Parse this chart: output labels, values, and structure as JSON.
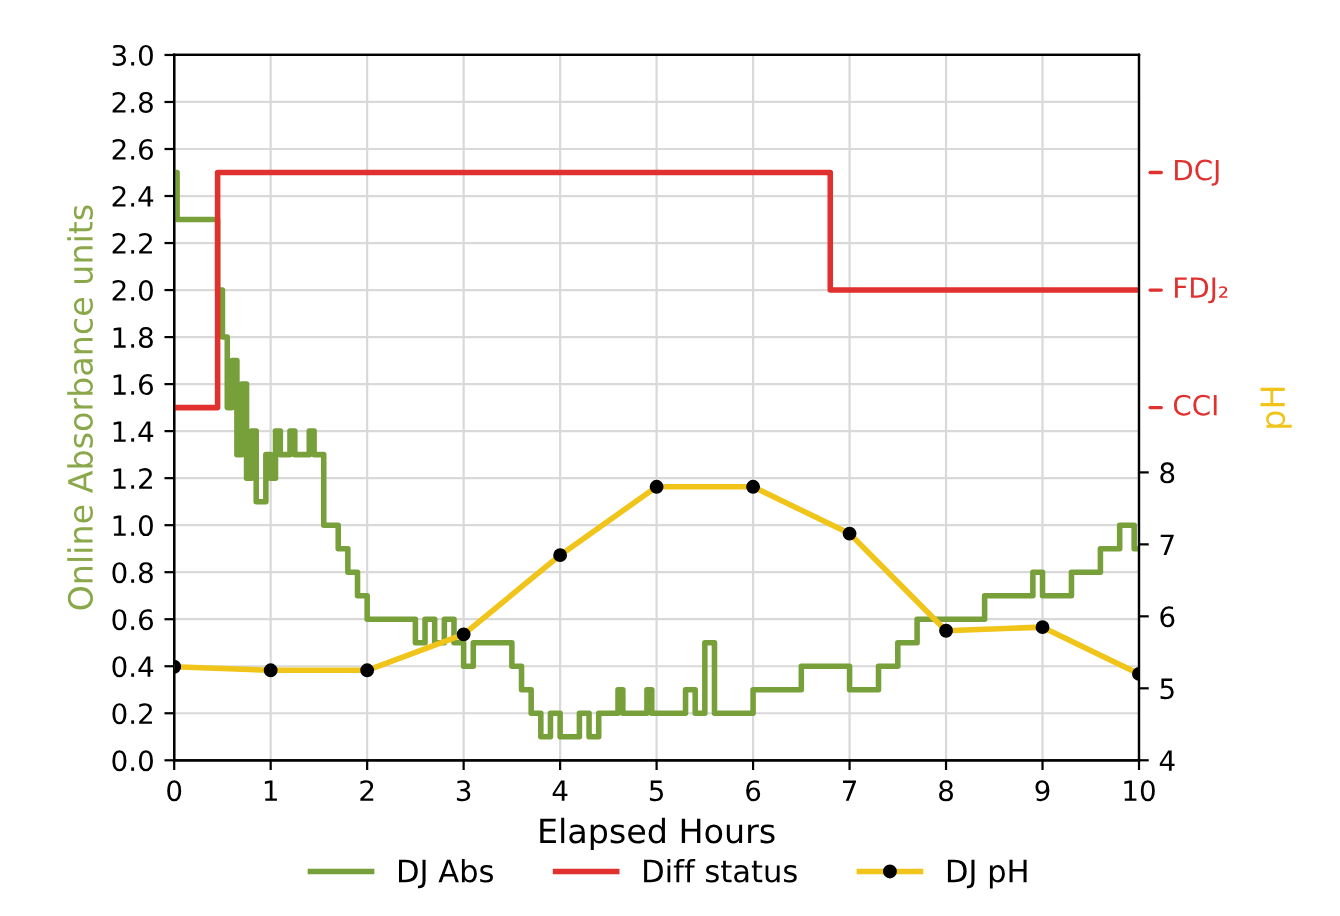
{
  "chart_data": {
    "type": "line",
    "xlabel": "Elapsed Hours",
    "ylabel": "Online Absorbance units",
    "y2label": "pH",
    "xlim": [
      0,
      10
    ],
    "xticks": [
      0,
      1,
      2,
      3,
      4,
      5,
      6,
      7,
      8,
      9,
      10
    ],
    "ylim": [
      0,
      3.0
    ],
    "yticks": [
      {
        "value": 0,
        "label": "0.0"
      },
      {
        "value": 0.2,
        "label": "0.2"
      },
      {
        "value": 0.4,
        "label": "0.4"
      },
      {
        "value": 0.6,
        "label": "0.6"
      },
      {
        "value": 0.8,
        "label": "0.8"
      },
      {
        "value": 1.0,
        "label": "1.0"
      },
      {
        "value": 1.2,
        "label": "1.2"
      },
      {
        "value": 1.4,
        "label": "1.4"
      },
      {
        "value": 1.6,
        "label": "1.6"
      },
      {
        "value": 1.8,
        "label": "1.8"
      },
      {
        "value": 2.0,
        "label": "2.0"
      },
      {
        "value": 2.2,
        "label": "2.2"
      },
      {
        "value": 2.4,
        "label": "2.4"
      },
      {
        "value": 2.6,
        "label": "2.6"
      },
      {
        "value": 2.8,
        "label": "2.8"
      },
      {
        "value": 3.0,
        "label": "3.0"
      }
    ],
    "y2lim": [
      4,
      13.8
    ],
    "y2ticks": [
      4,
      5,
      6,
      7,
      8
    ],
    "annotations": [
      "CCI",
      "FDJ₂",
      "DCJ"
    ],
    "grid": true,
    "legend": "bottom",
    "series": [
      {
        "name": "DJ Abs",
        "type": "step",
        "color": "#77a03a",
        "x": [
          0,
          0.03,
          0.45,
          0.5,
          0.55,
          0.6,
          0.65,
          0.7,
          0.75,
          0.8,
          0.85,
          0.95,
          1.0,
          1.05,
          1.1,
          1.2,
          1.25,
          1.4,
          1.45,
          1.55,
          1.7,
          1.8,
          1.9,
          2.0,
          2.5,
          2.6,
          2.7,
          2.8,
          2.9,
          3.0,
          3.1,
          3.5,
          3.6,
          3.7,
          3.8,
          3.9,
          4.0,
          4.2,
          4.3,
          4.4,
          4.6,
          4.65,
          4.9,
          4.95,
          5.3,
          5.4,
          5.5,
          5.6,
          6.0,
          6.5,
          7.0,
          7.3,
          7.5,
          7.7,
          8.0,
          8.4,
          8.9,
          9.0,
          9.3,
          9.6,
          9.8,
          9.95,
          10
        ],
        "values": [
          2.5,
          2.3,
          2.0,
          1.8,
          1.5,
          1.7,
          1.3,
          1.6,
          1.2,
          1.4,
          1.1,
          1.3,
          1.2,
          1.4,
          1.3,
          1.4,
          1.3,
          1.4,
          1.3,
          1.0,
          0.9,
          0.8,
          0.7,
          0.6,
          0.5,
          0.6,
          0.5,
          0.6,
          0.5,
          0.4,
          0.5,
          0.4,
          0.3,
          0.2,
          0.1,
          0.2,
          0.1,
          0.2,
          0.1,
          0.2,
          0.3,
          0.2,
          0.3,
          0.2,
          0.3,
          0.2,
          0.5,
          0.2,
          0.3,
          0.4,
          0.3,
          0.4,
          0.5,
          0.6,
          0.6,
          0.7,
          0.8,
          0.7,
          0.8,
          0.9,
          1.0,
          0.9,
          0.9
        ]
      },
      {
        "name": "Diff status",
        "type": "step",
        "color": "#e0312f",
        "x": [
          0,
          0.45,
          6.8,
          10
        ],
        "values": [
          1.5,
          2.5,
          2.0,
          2.0
        ]
      },
      {
        "name": "DJ pH",
        "color": "#f0c419",
        "axis": "y2",
        "marker": "circle",
        "x": [
          0,
          1,
          2,
          3,
          4,
          5,
          6,
          7,
          8,
          9,
          10
        ],
        "values": [
          5.3,
          5.25,
          5.25,
          5.75,
          6.85,
          7.8,
          7.8,
          7.15,
          5.8,
          5.85,
          5.2
        ]
      }
    ]
  }
}
